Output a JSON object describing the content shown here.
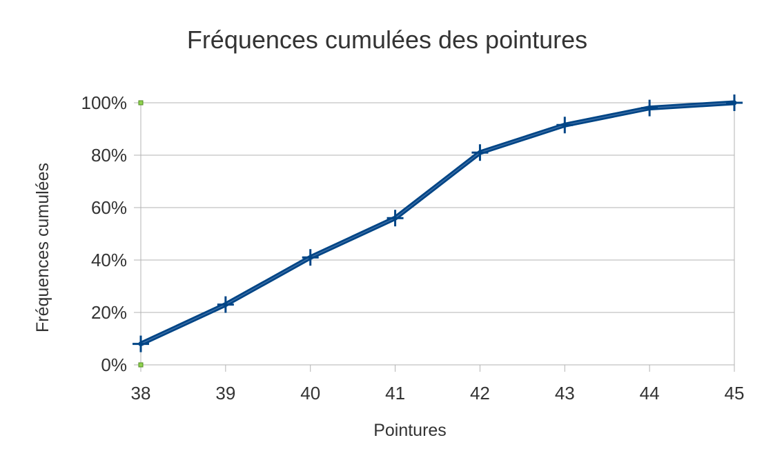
{
  "chart_data": {
    "type": "line",
    "title": "Fréquences cumulées des pointures",
    "xlabel": "Pointures",
    "ylabel": "Fréquences cumulées",
    "categories": [
      "38",
      "39",
      "40",
      "41",
      "42",
      "43",
      "44",
      "45"
    ],
    "y_ticks": [
      "0%",
      "20%",
      "40%",
      "60%",
      "80%",
      "100%"
    ],
    "ylim": [
      0,
      1
    ],
    "grid": true,
    "legend": "none",
    "series": [
      {
        "values": [
          0.08,
          0.23,
          0.41,
          0.56,
          0.81,
          0.915,
          0.98,
          1.0
        ],
        "color": "#004586",
        "marker": "plus"
      }
    ]
  }
}
